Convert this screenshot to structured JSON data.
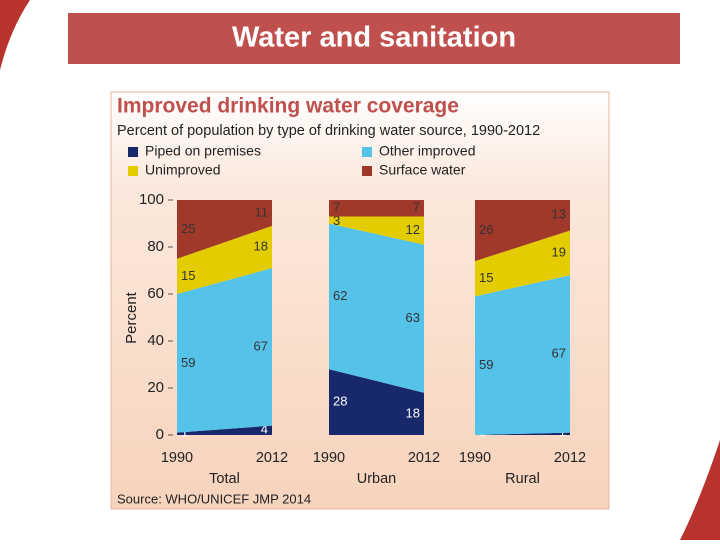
{
  "slide_title": "Water and sanitation",
  "chart_data": {
    "type": "stacked-area",
    "title": "Improved drinking water coverage",
    "subtitle": "Percent of population by type of drinking water source, 1990-2012",
    "y_label": "Percent",
    "ylim": [
      0,
      100
    ],
    "yticks": [
      0,
      20,
      40,
      60,
      80,
      100
    ],
    "series": [
      {
        "name": "Piped on premises",
        "color": "#17296b"
      },
      {
        "name": "Other improved",
        "color": "#55c2ea"
      },
      {
        "name": "Unimproved",
        "color": "#e3cc00"
      },
      {
        "name": "Surface water",
        "color": "#a0392a"
      }
    ],
    "panels": [
      {
        "label": "Total",
        "x": [
          1990,
          2012
        ],
        "values": [
          [
            1,
            4
          ],
          [
            59,
            67
          ],
          [
            15,
            18
          ],
          [
            25,
            11
          ]
        ]
      },
      {
        "label": "Urban",
        "x": [
          1990,
          2012
        ],
        "values": [
          [
            28,
            18
          ],
          [
            62,
            63
          ],
          [
            3,
            12
          ],
          [
            7,
            7
          ]
        ]
      },
      {
        "label": "Rural",
        "x": [
          1990,
          2012
        ],
        "values": [
          [
            0,
            1
          ],
          [
            59,
            67
          ],
          [
            15,
            19
          ],
          [
            26,
            13
          ]
        ]
      }
    ],
    "source": "Source:  WHO/UNICEF JMP 2014"
  }
}
